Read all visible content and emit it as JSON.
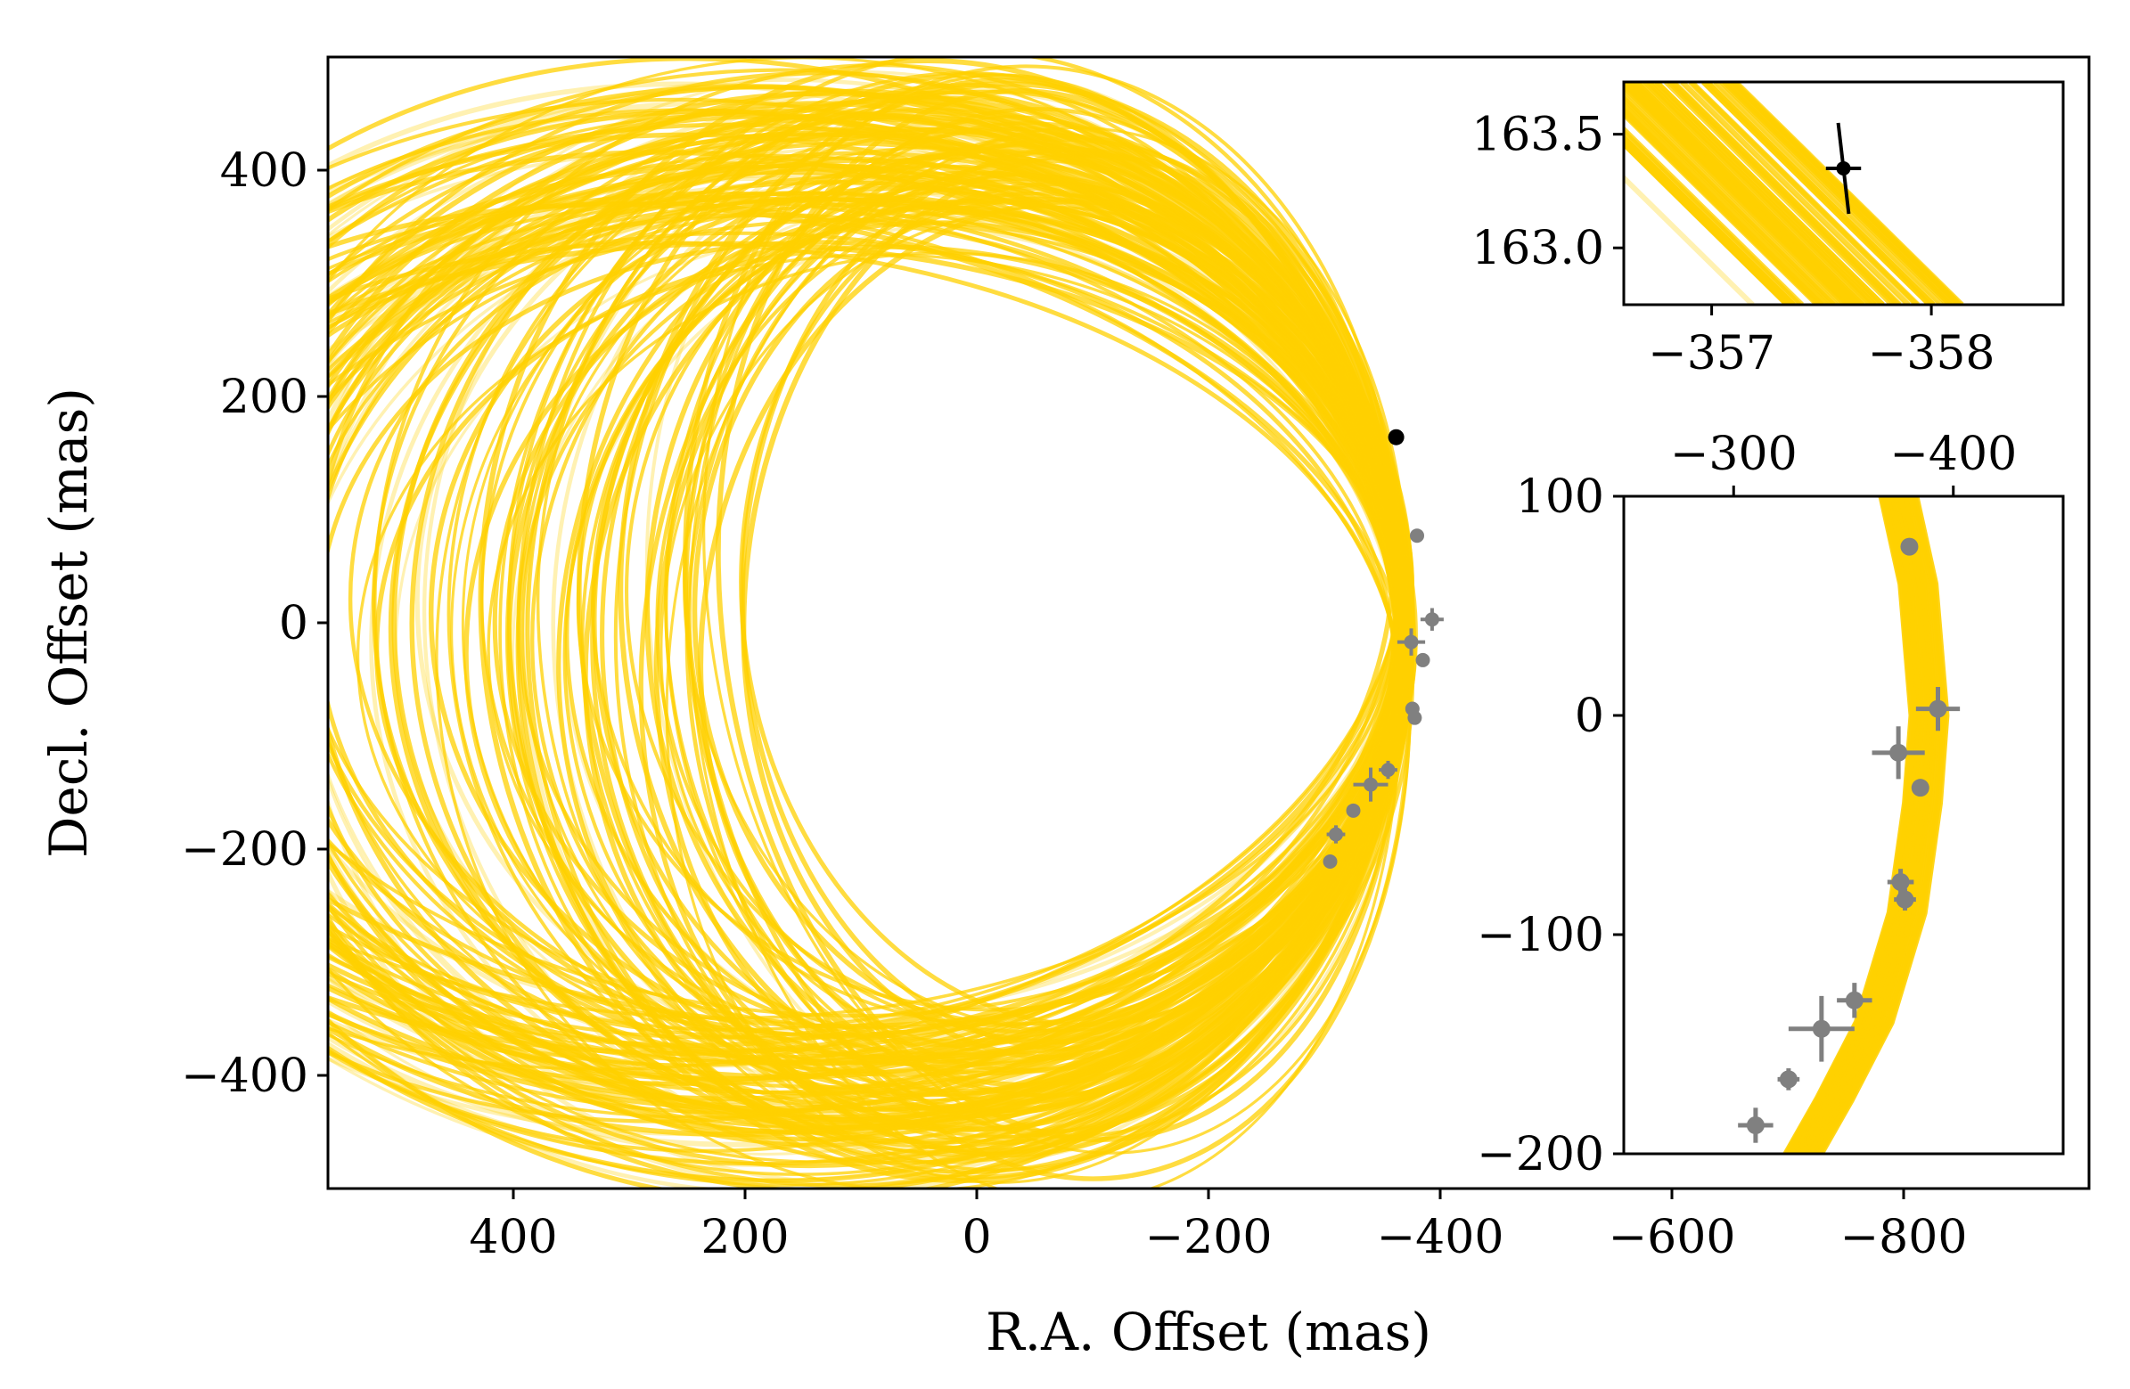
{
  "chart_data": [
    {
      "type": "scatter",
      "panel": "main",
      "xlabel": "R.A. Offset (mas)",
      "ylabel": "Decl. Offset (mas)",
      "xlim": [
        560,
        -960
      ],
      "ylim": [
        -500,
        500
      ],
      "x_ticks": [
        400,
        200,
        0,
        -200,
        -400,
        -600,
        -800
      ],
      "x_tick_labels": [
        "400",
        "200",
        "0",
        "−200",
        "−400",
        "−600",
        "−800"
      ],
      "y_ticks": [
        400,
        200,
        0,
        -200,
        -400
      ],
      "y_tick_labels": [
        "400",
        "200",
        "0",
        "−200",
        "−400"
      ],
      "orbit_color": "#ffd000",
      "orbit_model": {
        "center_ra": 75,
        "center_dec": 0,
        "mean_semi_ra": 450,
        "mean_semi_dec": 415,
        "count": 150
      },
      "current_point": {
        "ra": -362,
        "dec": 164,
        "color": "#000000"
      },
      "measurements": {
        "color": "#808080",
        "points": [
          {
            "ra": -380,
            "dec": 77,
            "ra_err": 0,
            "dec_err": 0
          },
          {
            "ra": -393,
            "dec": 3,
            "ra_err": 10,
            "dec_err": 10
          },
          {
            "ra": -375,
            "dec": -17,
            "ra_err": 12,
            "dec_err": 12
          },
          {
            "ra": -385,
            "dec": -33,
            "ra_err": 0,
            "dec_err": 0
          },
          {
            "ra": -376,
            "dec": -76,
            "ra_err": 6,
            "dec_err": 6
          },
          {
            "ra": -378,
            "dec": -84,
            "ra_err": 5,
            "dec_err": 5
          },
          {
            "ra": -355,
            "dec": -130,
            "ra_err": 8,
            "dec_err": 8
          },
          {
            "ra": -340,
            "dec": -143,
            "ra_err": 15,
            "dec_err": 15
          },
          {
            "ra": -325,
            "dec": -166,
            "ra_err": 5,
            "dec_err": 5
          },
          {
            "ra": -310,
            "dec": -187,
            "ra_err": 8,
            "dec_err": 8
          },
          {
            "ra": -305,
            "dec": -211,
            "ra_err": 0,
            "dec_err": 0
          }
        ]
      }
    },
    {
      "type": "scatter",
      "panel": "inset-top",
      "xlim": [
        -356.6,
        -358.6
      ],
      "ylim": [
        162.75,
        163.73
      ],
      "x_ticks": [
        -357,
        -358
      ],
      "x_tick_labels": [
        "−357",
        "−358"
      ],
      "y_ticks": [
        163.0,
        163.5
      ],
      "y_tick_labels": [
        "163.0",
        "163.5"
      ],
      "point": {
        "ra": -357.6,
        "dec": 163.35,
        "ra_err": 0.08,
        "dec_err": 0.2,
        "color": "#000000"
      }
    },
    {
      "type": "scatter",
      "panel": "inset-bottom",
      "xlim": [
        -250,
        -450
      ],
      "ylim": [
        -200,
        100
      ],
      "x_ticks": [
        -300,
        -400
      ],
      "x_tick_labels": [
        "−300",
        "−400"
      ],
      "y_ticks": [
        100,
        0,
        -100,
        -200
      ],
      "y_tick_labels": [
        "100",
        "0",
        "−100",
        "−200"
      ]
    }
  ]
}
